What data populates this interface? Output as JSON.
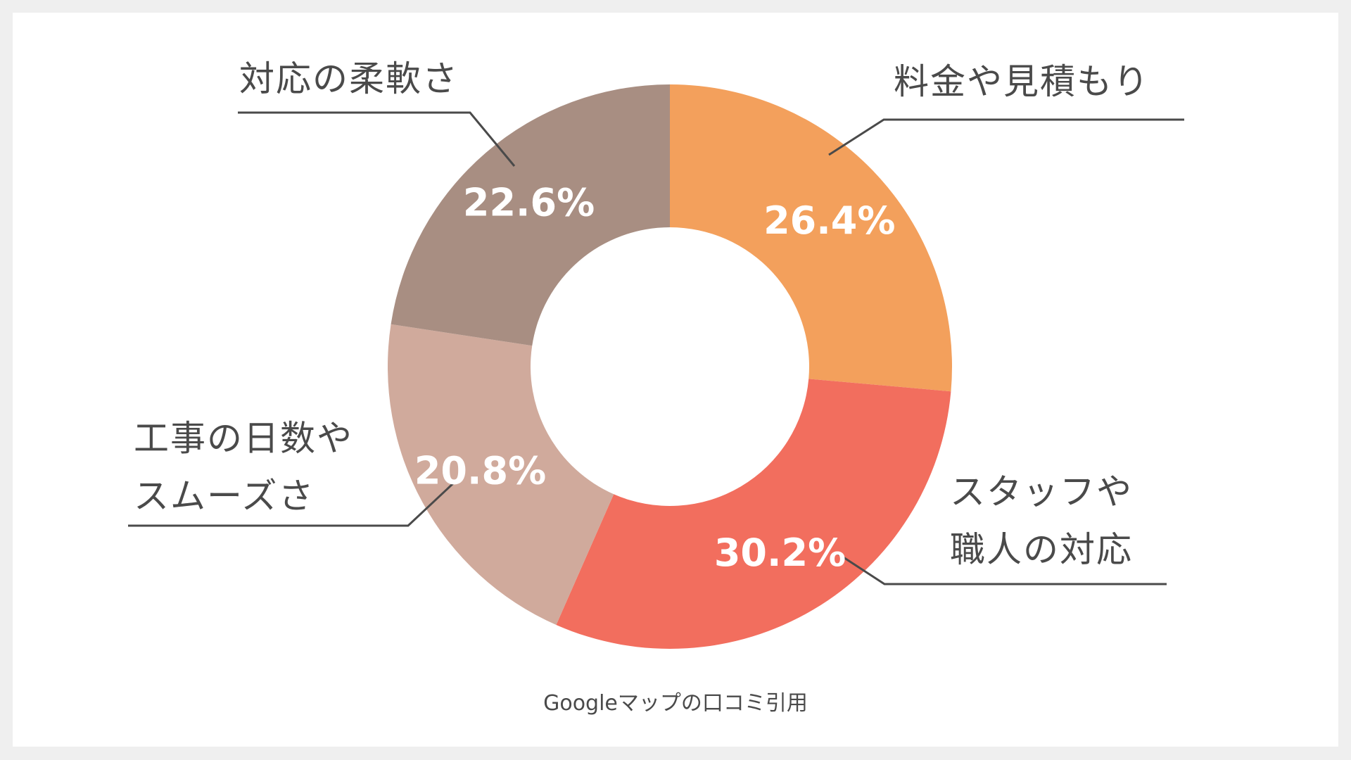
{
  "chart_data": {
    "type": "pie",
    "donut": true,
    "slices": [
      {
        "label": "料金や見積もり",
        "lines": [
          "料金や見積もり"
        ],
        "value": 26.4,
        "value_label": "26.4%",
        "color": "#f3a05c"
      },
      {
        "label": "スタッフや職人の対応",
        "lines": [
          "スタッフや",
          "職人の対応"
        ],
        "value": 30.2,
        "value_label": "30.2%",
        "color": "#f26e5e"
      },
      {
        "label": "工事の日数やスムーズさ",
        "lines": [
          "工事の日数や",
          "スムーズさ"
        ],
        "value": 20.8,
        "value_label": "20.8%",
        "color": "#d0aa9c"
      },
      {
        "label": "対応の柔軟さ",
        "lines": [
          "対応の柔軟さ"
        ],
        "value": 22.6,
        "value_label": "22.6%",
        "color": "#a88e82"
      }
    ],
    "source_note": "Googleマップの口コミ引用"
  }
}
